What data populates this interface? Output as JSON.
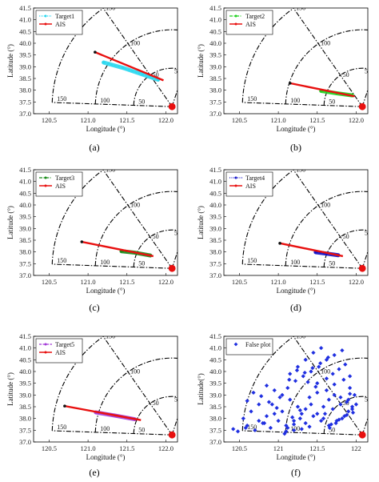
{
  "colors": {
    "ais": "#e8100f",
    "ais_start": "#111111",
    "radar": "#e8100f",
    "frame": "#000000",
    "target1": "#2ad8f0",
    "target2": "#1fd11f",
    "target3": "#178a17",
    "target4": "#1010c8",
    "target5": "#a23ad8",
    "false_plot": "#1f2fe0"
  },
  "chart_data": [
    {
      "type": "line",
      "caption": "(a)",
      "xlabel": "Longitude (°)",
      "ylabel": "Latitude (°)",
      "xticks": [
        "120.5",
        "121.0",
        "121.5",
        "122.0"
      ],
      "yticks": [
        "37.0",
        "37.5",
        "38.0",
        "38.5",
        "39.0",
        "39.5",
        "40.0",
        "40.5",
        "41.0",
        "41.5"
      ],
      "ticks_y_vals": [
        37.0,
        37.5,
        38.0,
        38.5,
        39.0,
        39.5,
        40.0,
        40.5,
        41.0,
        41.5
      ],
      "xlim": [
        120.3,
        122.15
      ],
      "ylim": [
        37.0,
        41.5
      ],
      "radar": {
        "lon": 122.08,
        "lat": 37.3
      },
      "range_rings": [
        "50",
        "100",
        "150"
      ],
      "legend": [
        {
          "name": "Target1",
          "style": "dot"
        },
        {
          "name": "AIS",
          "style": "solid"
        }
      ],
      "series": [
        {
          "name": "Target1",
          "color_key": "target1",
          "kind": "band",
          "x": [
            121.2,
            121.45,
            121.7,
            121.9
          ],
          "y": [
            39.18,
            38.95,
            38.67,
            38.45
          ]
        },
        {
          "name": "AIS",
          "color_key": "ais",
          "kind": "line",
          "x": [
            121.09,
            121.97
          ],
          "y": [
            39.62,
            38.42
          ]
        }
      ]
    },
    {
      "type": "line",
      "caption": "(b)",
      "xlabel": "Longitude (°)",
      "ylabel": "Latitude (°)",
      "xticks": [
        "120.5",
        "121.0",
        "121.5",
        "122.0"
      ],
      "yticks": [
        "37.0",
        "37.5",
        "38.0",
        "38.5",
        "39.0",
        "39.5",
        "40.0",
        "40.5",
        "41.0",
        "41.5"
      ],
      "ticks_y_vals": [
        37.0,
        37.5,
        38.0,
        38.5,
        39.0,
        39.5,
        40.0,
        40.5,
        41.0,
        41.5
      ],
      "xlim": [
        120.3,
        122.15
      ],
      "ylim": [
        37.0,
        41.5
      ],
      "radar": {
        "lon": 122.08,
        "lat": 37.3
      },
      "range_rings": [
        "50",
        "100",
        "150"
      ],
      "legend": [
        {
          "name": "Target2",
          "style": "dashdot"
        },
        {
          "name": "AIS",
          "style": "solid"
        }
      ],
      "series": [
        {
          "name": "Target2",
          "color_key": "target2",
          "kind": "band",
          "x": [
            121.55,
            121.75,
            121.95
          ],
          "y": [
            37.97,
            37.87,
            37.78
          ]
        },
        {
          "name": "AIS",
          "color_key": "ais",
          "kind": "line",
          "x": [
            121.15,
            121.98
          ],
          "y": [
            38.3,
            37.74
          ]
        }
      ]
    },
    {
      "type": "line",
      "caption": "(c)",
      "xlabel": "Longitude (°)",
      "ylabel": "Latitude (°)",
      "xticks": [
        "120.5",
        "121.0",
        "121.5",
        "122.0"
      ],
      "yticks": [
        "37.0",
        "37.5",
        "38.0",
        "38.5",
        "39.0",
        "39.5",
        "40.0",
        "40.5",
        "41.0",
        "41.5"
      ],
      "ticks_y_vals": [
        37.0,
        37.5,
        38.0,
        38.5,
        39.0,
        39.5,
        40.0,
        40.5,
        41.0,
        41.5
      ],
      "xlim": [
        120.3,
        122.15
      ],
      "ylim": [
        37.0,
        41.5
      ],
      "radar": {
        "lon": 122.08,
        "lat": 37.3
      },
      "range_rings": [
        "50",
        "100",
        "150"
      ],
      "legend": [
        {
          "name": "Target3",
          "style": "dashdot"
        },
        {
          "name": "AIS",
          "style": "solid"
        }
      ],
      "series": [
        {
          "name": "Target3",
          "color_key": "target3",
          "kind": "band",
          "x": [
            121.43,
            121.6,
            121.8
          ],
          "y": [
            38.03,
            37.97,
            37.85
          ]
        },
        {
          "name": "AIS",
          "color_key": "ais",
          "kind": "line",
          "x": [
            120.92,
            121.84
          ],
          "y": [
            38.43,
            37.82
          ]
        }
      ]
    },
    {
      "type": "line",
      "caption": "(d)",
      "xlabel": "Longitude (°)",
      "ylabel": "Latitude (°)",
      "xticks": [
        "120.5",
        "121.0",
        "121.5",
        "122.0"
      ],
      "yticks": [
        "37.0",
        "37.5",
        "38.0",
        "38.5",
        "39.0",
        "39.5",
        "40.0",
        "40.5",
        "41.0",
        "41.5"
      ],
      "ticks_y_vals": [
        37.0,
        37.5,
        38.0,
        38.5,
        39.0,
        39.5,
        40.0,
        40.5,
        41.0,
        41.5
      ],
      "xlim": [
        120.3,
        122.15
      ],
      "ylim": [
        37.0,
        41.5
      ],
      "radar": {
        "lon": 122.08,
        "lat": 37.3
      },
      "range_rings": [
        "50",
        "100",
        "150"
      ],
      "legend": [
        {
          "name": "Target4",
          "style": "dotted"
        },
        {
          "name": "AIS",
          "style": "solid"
        }
      ],
      "series": [
        {
          "name": "Target4",
          "color_key": "target4",
          "kind": "band",
          "x": [
            121.48,
            121.62,
            121.77
          ],
          "y": [
            37.99,
            37.93,
            37.86
          ]
        },
        {
          "name": "AIS",
          "color_key": "ais",
          "kind": "line",
          "x": [
            121.02,
            121.83
          ],
          "y": [
            38.37,
            37.82
          ]
        }
      ]
    },
    {
      "type": "line",
      "caption": "(e)",
      "xlabel": "Longitude (°)",
      "ylabel": "Latitude (°)",
      "xticks": [
        "120.5",
        "121.0",
        "121.5",
        "122.0"
      ],
      "yticks": [
        "37.0",
        "37.5",
        "38.0",
        "38.5",
        "39.0",
        "39.5",
        "40.0",
        "40.5",
        "41.0",
        "41.5"
      ],
      "ticks_y_vals": [
        37.0,
        37.5,
        38.0,
        38.5,
        39.0,
        39.5,
        40.0,
        40.5,
        41.0,
        41.5
      ],
      "xlim": [
        120.3,
        122.15
      ],
      "ylim": [
        37.0,
        41.5
      ],
      "radar": {
        "lon": 122.08,
        "lat": 37.3
      },
      "range_rings": [
        "50",
        "100",
        "150"
      ],
      "legend": [
        {
          "name": "Target5",
          "style": "dashed"
        },
        {
          "name": "AIS",
          "style": "solid"
        }
      ],
      "series": [
        {
          "name": "Target5",
          "color_key": "target5",
          "kind": "band",
          "x": [
            121.1,
            121.35,
            121.6
          ],
          "y": [
            38.26,
            38.12,
            37.97
          ]
        },
        {
          "name": "AIS",
          "color_key": "ais",
          "kind": "line",
          "x": [
            120.7,
            121.68
          ],
          "y": [
            38.53,
            37.93
          ]
        }
      ]
    },
    {
      "type": "scatter",
      "caption": "(f)",
      "xlabel": "Longitude (°)",
      "ylabel": "Latitude(°)",
      "xticks": [
        "120.5",
        "121",
        "121.5",
        "122"
      ],
      "yticks": [
        "37.0",
        "37.5",
        "38.0",
        "38.5",
        "39.0",
        "39.5",
        "40.0",
        "40.5",
        "41.0",
        "41.5"
      ],
      "ticks_y_vals": [
        37.0,
        37.5,
        38.0,
        38.5,
        39.0,
        39.5,
        40.0,
        40.5,
        41.0,
        41.5
      ],
      "xlim": [
        120.3,
        122.15
      ],
      "ylim": [
        37.0,
        41.5
      ],
      "radar": {
        "lon": 122.08,
        "lat": 37.3
      },
      "range_rings": [
        "50",
        "100",
        "150"
      ],
      "legend": [
        {
          "name": "False plot",
          "style": "marker"
        }
      ],
      "series": [
        {
          "name": "False plot",
          "color_key": "false_plot",
          "kind": "scatter",
          "x": [
            120.42,
            120.6,
            120.75,
            120.85,
            120.95,
            121.05,
            121.12,
            121.2,
            121.28,
            121.35,
            121.42,
            121.5,
            121.58,
            121.65,
            121.72,
            121.8,
            121.88,
            121.95,
            121.5,
            121.62,
            121.7,
            121.78,
            121.86,
            121.92,
            121.98,
            122.0,
            121.9,
            121.82,
            121.74,
            121.66,
            121.55,
            121.45,
            121.35,
            121.25,
            121.15,
            121.05,
            120.95,
            120.85,
            120.75,
            120.65,
            120.55,
            120.48,
            120.58,
            120.7,
            120.82,
            120.92,
            121.02,
            121.12,
            121.22,
            121.32,
            121.42,
            121.52,
            121.62,
            121.72,
            121.82,
            121.92,
            121.2,
            121.3,
            121.4,
            121.5,
            121.6,
            121.7,
            121.8,
            121.9,
            121.1,
            121.0,
            120.9,
            120.8,
            121.15,
            121.25,
            121.35,
            121.45,
            121.55,
            121.65,
            121.75,
            121.85,
            121.95,
            121.58,
            121.68,
            121.78,
            121.88,
            121.96,
            121.4,
            121.3,
            121.2,
            121.1,
            120.98,
            120.88,
            120.78,
            120.68,
            120.6,
            121.48,
            121.38,
            121.28,
            121.18,
            121.08,
            121.62,
            121.72,
            121.84,
            121.92,
            121.64,
            121.54,
            121.44,
            121.34,
            121.24,
            121.14
          ],
          "y": [
            37.55,
            37.7,
            37.9,
            38.1,
            38.2,
            38.3,
            37.6,
            37.75,
            38.0,
            38.4,
            38.6,
            38.2,
            38.5,
            38.8,
            39.0,
            38.9,
            38.7,
            38.5,
            39.5,
            39.7,
            39.9,
            40.1,
            40.3,
            39.3,
            39.0,
            38.6,
            38.3,
            38.0,
            37.8,
            37.6,
            37.9,
            38.1,
            37.8,
            38.5,
            38.8,
            39.0,
            39.2,
            39.4,
            38.6,
            38.3,
            38.0,
            37.45,
            37.6,
            37.5,
            37.8,
            38.6,
            38.9,
            39.3,
            39.6,
            39.8,
            40.0,
            40.2,
            40.5,
            40.7,
            40.9,
            39.8,
            37.9,
            38.2,
            38.9,
            39.1,
            38.2,
            38.4,
            38.6,
            38.8,
            37.7,
            37.9,
            37.6,
            37.8,
            39.9,
            40.2,
            40.5,
            40.8,
            41.0,
            37.7,
            37.9,
            38.1,
            38.4,
            38.0,
            37.75,
            37.95,
            38.15,
            38.25,
            37.65,
            37.55,
            37.5,
            37.45,
            38.45,
            38.7,
            38.95,
            39.1,
            38.75,
            39.35,
            39.55,
            38.35,
            38.05,
            37.35,
            39.2,
            39.45,
            39.65,
            39.05,
            40.6,
            40.35,
            40.15,
            39.95,
            40.05,
            39.65
          ]
        }
      ]
    }
  ]
}
